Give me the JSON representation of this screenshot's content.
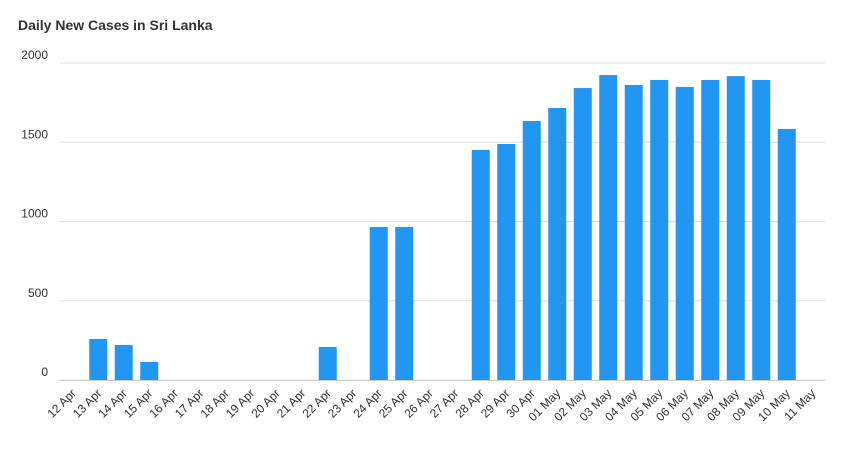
{
  "chart_data": {
    "type": "bar",
    "title": "Daily New Cases in Sri Lanka",
    "categories": [
      "12 Apr",
      "13 Apr",
      "14 Apr",
      "15 Apr",
      "16 Apr",
      "17 Apr",
      "18 Apr",
      "19 Apr",
      "20 Apr",
      "21 Apr",
      "22 Apr",
      "23 Apr",
      "24 Apr",
      "25 Apr",
      "26 Apr",
      "27 Apr",
      "28 Apr",
      "29 Apr",
      "30 Apr",
      "01 May",
      "02 May",
      "03 May",
      "04 May",
      "05 May",
      "06 May",
      "07 May",
      "08 May",
      "09 May",
      "10 May",
      "11 May"
    ],
    "values": [
      0,
      259,
      221,
      114,
      0,
      0,
      0,
      0,
      0,
      0,
      208,
      0,
      965,
      965,
      0,
      0,
      1451,
      1489,
      1634,
      1716,
      1842,
      1924,
      1861,
      1893,
      1849,
      1893,
      1917,
      1893,
      1584,
      0
    ],
    "color": "#2196f3",
    "ylim": [
      0,
      2000
    ],
    "yticks": [
      0,
      500,
      1000,
      1500,
      2000
    ],
    "grid": true
  }
}
